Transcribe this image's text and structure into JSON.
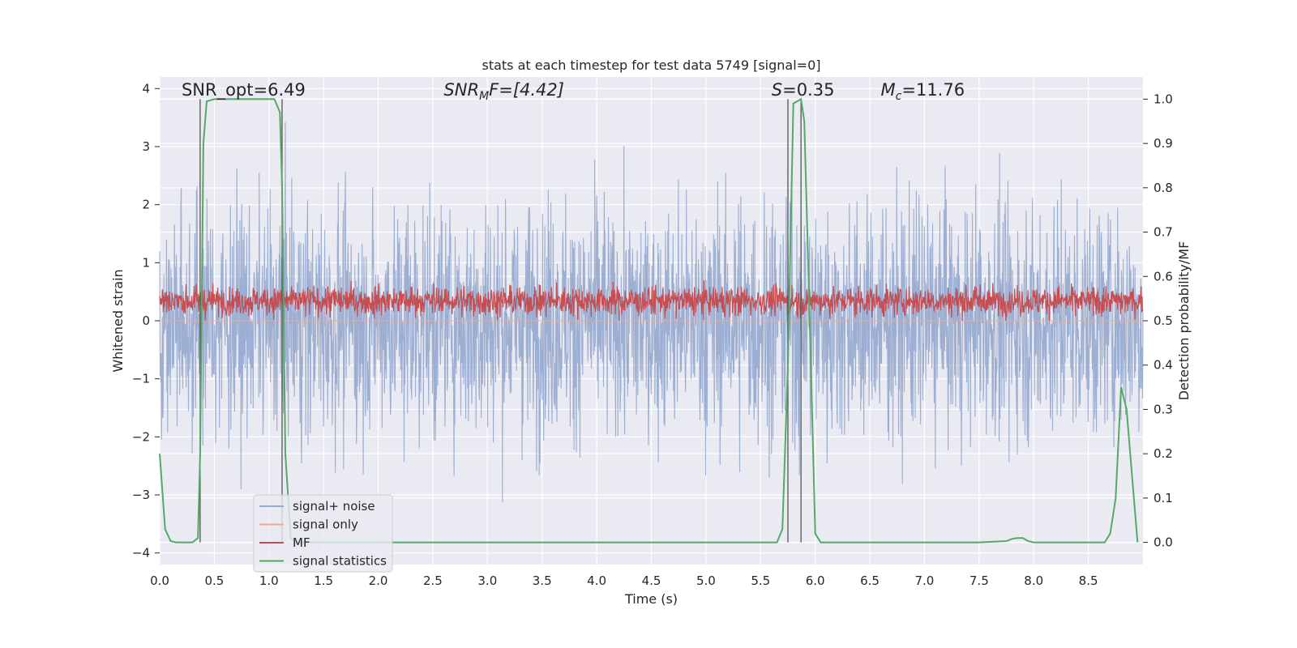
{
  "chart_data": {
    "type": "line",
    "title": "stats at each timestep for test data 5749 [signal=0]",
    "xlabel": "Time (s)",
    "ylabel": "Whitened strain",
    "y2label": "Detection probability/MF",
    "xlim": [
      0,
      9.0
    ],
    "ylim": [
      -4.2,
      4.2
    ],
    "y2lim": [
      -0.05,
      1.05
    ],
    "grid": true,
    "x_ticks": [
      0.0,
      0.5,
      1.0,
      1.5,
      2.0,
      2.5,
      3.0,
      3.5,
      4.0,
      4.5,
      5.0,
      5.5,
      6.0,
      6.5,
      7.0,
      7.5,
      8.0,
      8.5
    ],
    "x_tick_labels": [
      "0.0",
      "0.5",
      "1.0",
      "1.5",
      "2.0",
      "2.5",
      "3.0",
      "3.5",
      "4.0",
      "4.5",
      "5.0",
      "5.5",
      "6.0",
      "6.5",
      "7.0",
      "7.5",
      "8.0",
      "8.5"
    ],
    "y_ticks": [
      -4,
      -3,
      -2,
      -1,
      0,
      1,
      2,
      3,
      4
    ],
    "y_tick_labels": [
      "−4",
      "−3",
      "−2",
      "−1",
      "0",
      "1",
      "2",
      "3",
      "4"
    ],
    "y2_ticks": [
      0.0,
      0.1,
      0.2,
      0.3,
      0.4,
      0.5,
      0.6,
      0.7,
      0.8,
      0.9,
      1.0
    ],
    "y2_tick_labels": [
      "0.0",
      "0.1",
      "0.2",
      "0.3",
      "0.4",
      "0.5",
      "0.6",
      "0.7",
      "0.8",
      "0.9",
      "1.0"
    ],
    "annotations": {
      "snr_opt": {
        "text": "SNR_opt=6.49",
        "x": 0.2,
        "y": 3.88
      },
      "snr_mf": {
        "main": "SNR",
        "sub": "M",
        "rest": "F=[4.42]",
        "x": 2.6,
        "y": 3.88
      },
      "s_stat": {
        "main": "S",
        "rest": "=0.35",
        "x": 5.6,
        "y": 3.88
      },
      "chirp_mass": {
        "main": "M",
        "sub": "c",
        "rest": "=11.76",
        "x": 6.6,
        "y": 3.88
      }
    },
    "vlines": [
      {
        "x": 0.37,
        "y2_from": 0.0,
        "y2_to": 1.0
      },
      {
        "x": 1.12,
        "y2_from": 0.0,
        "y2_to": 1.0
      },
      {
        "x": 5.75,
        "y2_from": 0.0,
        "y2_to": 1.0
      },
      {
        "x": 5.87,
        "y2_from": 0.0,
        "y2_to": 1.0
      }
    ],
    "series": [
      {
        "name": "signal+ noise",
        "color": "#98abd0",
        "axis": "left",
        "kind": "noise",
        "envelope_peak": [
          3.9,
          -4.0
        ],
        "typical_range": [
          -1.8,
          1.8
        ]
      },
      {
        "name": "signal only",
        "color": "#f0a88e",
        "axis": "left",
        "kind": "flat",
        "value": 0
      },
      {
        "name": "MF",
        "color": "#c44e52",
        "axis": "right",
        "kind": "noise",
        "typical_range": [
          0.515,
          0.575
        ],
        "peak_range": [
          0.5,
          0.62
        ]
      },
      {
        "name": "signal statistics",
        "color": "#55a868",
        "axis": "right",
        "x": [
          0.0,
          0.05,
          0.1,
          0.15,
          0.2,
          0.25,
          0.3,
          0.35,
          0.37,
          0.4,
          0.43,
          0.5,
          0.6,
          0.7,
          0.8,
          0.9,
          1.0,
          1.05,
          1.1,
          1.12,
          1.15,
          1.2,
          1.25,
          1.5,
          2.0,
          3.0,
          4.0,
          5.0,
          5.5,
          5.65,
          5.7,
          5.75,
          5.8,
          5.87,
          5.9,
          5.95,
          6.0,
          6.05,
          6.5,
          7.0,
          7.5,
          7.75,
          7.8,
          7.85,
          7.9,
          7.95,
          8.0,
          8.5,
          8.65,
          8.7,
          8.75,
          8.8,
          8.85,
          8.9,
          8.95
        ],
        "values": [
          0.2,
          0.03,
          0.003,
          0.0,
          0.0,
          0.0,
          0.0,
          0.01,
          0.2,
          0.9,
          0.995,
          1.0,
          1.0,
          1.0,
          1.0,
          1.0,
          1.0,
          1.0,
          0.97,
          0.8,
          0.2,
          0.01,
          0.0,
          0.0,
          0.0,
          0.0,
          0.0,
          0.0,
          0.0,
          0.0,
          0.03,
          0.4,
          0.99,
          1.0,
          0.95,
          0.5,
          0.02,
          0.0,
          0.0,
          0.0,
          0.0,
          0.003,
          0.008,
          0.01,
          0.01,
          0.003,
          0.0,
          0.0,
          0.0,
          0.02,
          0.1,
          0.35,
          0.3,
          0.15,
          0.0
        ]
      }
    ]
  }
}
